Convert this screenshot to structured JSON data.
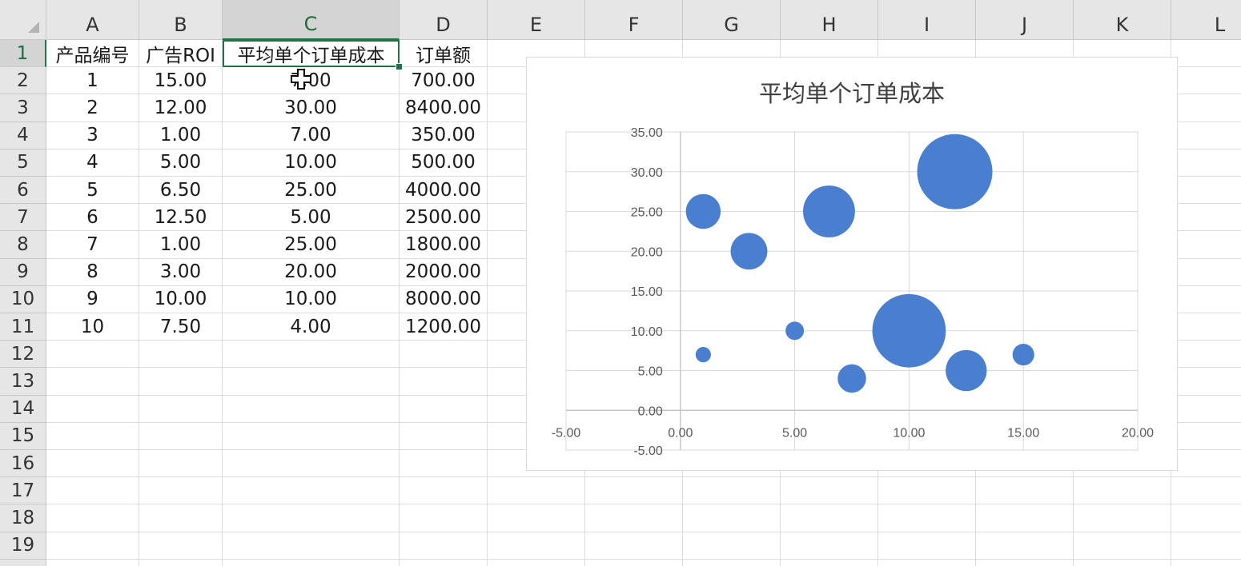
{
  "spreadsheet": {
    "columns": [
      "A",
      "B",
      "C",
      "D",
      "E",
      "F",
      "G",
      "H",
      "I",
      "J",
      "K",
      "L"
    ],
    "selected_column": "C",
    "row_numbers": [
      "1",
      "2",
      "3",
      "4",
      "5",
      "6",
      "7",
      "8",
      "9",
      "10",
      "11",
      "12",
      "13",
      "14",
      "15",
      "16",
      "17",
      "18",
      "19"
    ],
    "selected_row": "1",
    "headers": [
      "产品编号",
      "广告ROI",
      "平均单个订单成本",
      "订单额"
    ],
    "rows": [
      [
        "1",
        "15.00",
        "7.00",
        "700.00"
      ],
      [
        "2",
        "12.00",
        "30.00",
        "8400.00"
      ],
      [
        "3",
        "1.00",
        "7.00",
        "350.00"
      ],
      [
        "4",
        "5.00",
        "10.00",
        "500.00"
      ],
      [
        "5",
        "6.50",
        "25.00",
        "4000.00"
      ],
      [
        "6",
        "12.50",
        "5.00",
        "2500.00"
      ],
      [
        "7",
        "1.00",
        "25.00",
        "1800.00"
      ],
      [
        "8",
        "3.00",
        "20.00",
        "2000.00"
      ],
      [
        "9",
        "10.00",
        "10.00",
        "8000.00"
      ],
      [
        "10",
        "7.50",
        "4.00",
        "1200.00"
      ]
    ],
    "active_cell": "C1"
  },
  "colors": {
    "bubble": "#4a7fd0",
    "selection": "#217346",
    "grid": "#dcdcdc",
    "header_bg": "#e6e6e6"
  },
  "chart_data": {
    "type": "bubble",
    "title": "平均单个订单成本",
    "x": [
      15,
      12,
      1,
      5,
      6.5,
      12.5,
      1,
      3,
      10,
      7.5
    ],
    "y": [
      7,
      30,
      7,
      10,
      25,
      5,
      25,
      20,
      10,
      4
    ],
    "size": [
      700,
      8400,
      350,
      500,
      4000,
      2500,
      1800,
      2000,
      8000,
      1200
    ],
    "xlim": [
      -5,
      20
    ],
    "ylim": [
      -5,
      35
    ],
    "x_ticks": [
      "-5.00",
      "0.00",
      "5.00",
      "10.00",
      "15.00",
      "20.00"
    ],
    "y_ticks": [
      "-5.00",
      "0.00",
      "5.00",
      "10.00",
      "15.00",
      "20.00",
      "25.00",
      "30.00",
      "35.00"
    ],
    "grid": true,
    "legend": "none"
  }
}
